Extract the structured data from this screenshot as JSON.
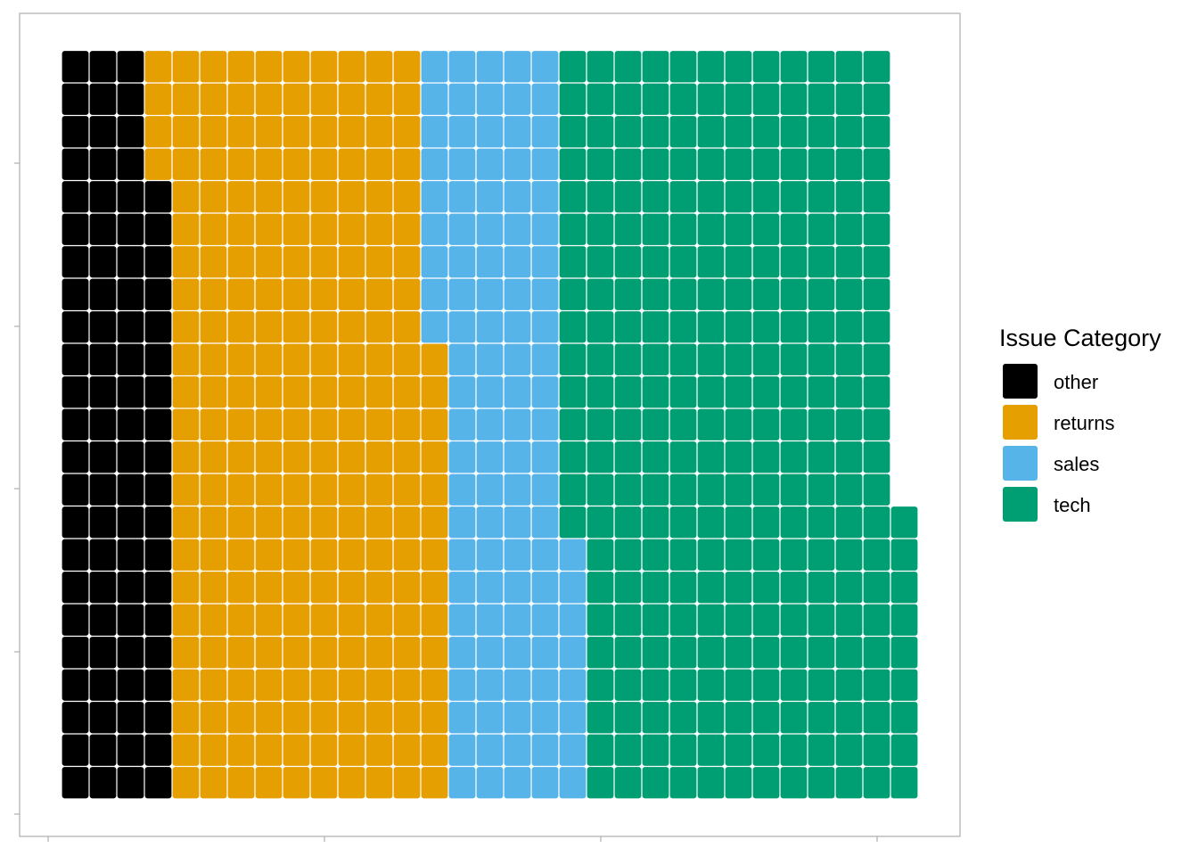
{
  "chart_data": {
    "type": "waffle",
    "legend": {
      "title": "Issue Category",
      "placement": "right"
    },
    "grid": {
      "columns": 31,
      "rows": 23,
      "fill_order": "column-wise, bottom to top, left to right"
    },
    "series": [
      {
        "name": "other",
        "value": 88,
        "color": "#000000"
      },
      {
        "name": "returns",
        "value": 225,
        "color": "#E69F00"
      },
      {
        "name": "sales",
        "value": 109,
        "color": "#56B4E9"
      },
      {
        "name": "tech",
        "value": 277,
        "color": "#009E73"
      }
    ],
    "x_ticks": 4,
    "y_ticks": 5,
    "x_tick_labels": [],
    "y_tick_labels": []
  }
}
